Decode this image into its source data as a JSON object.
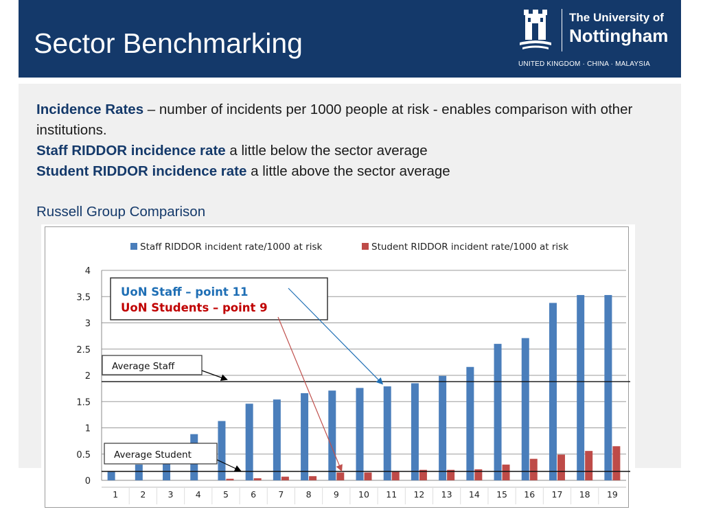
{
  "header": {
    "title": "Sector Benchmarking",
    "logo": {
      "line1": "The University of",
      "line2": "Nottingham",
      "line3": "UNITED KINGDOM · CHINA · MALAYSIA"
    }
  },
  "body": {
    "line1_bold": "Incidence Rates",
    "line1_rest": " – number of incidents per 1000 people at risk - enables comparison with other institutions.",
    "line2_bold": "Staff RIDDOR incidence rate",
    "line2_rest": " a little below the sector average",
    "line3_bold": "Student RIDDOR incidence rate",
    "line3_rest": " a little above the sector average",
    "subheading": "Russell Group Comparison"
  },
  "colors": {
    "header_bg": "#14396a",
    "staff_series": "#4a7ebb",
    "student_series": "#be4b48",
    "annotation_staff_text": "#1f6fb5",
    "annotation_student_text": "#c00000"
  },
  "chart_data": {
    "type": "bar",
    "categories": [
      "1",
      "2",
      "3",
      "4",
      "5",
      "6",
      "7",
      "8",
      "9",
      "10",
      "11",
      "12",
      "13",
      "14",
      "15",
      "16",
      "17",
      "18",
      "19"
    ],
    "series": [
      {
        "name": "Staff RIDDOR incident rate/1000 at risk",
        "values": [
          0.17,
          0.3,
          0.33,
          0.88,
          1.13,
          1.46,
          1.54,
          1.66,
          1.71,
          1.76,
          1.79,
          1.85,
          1.99,
          2.16,
          2.6,
          2.71,
          3.38,
          3.53,
          3.53
        ]
      },
      {
        "name": "Student RIDDOR incident rate/1000 at risk",
        "values": [
          0.0,
          0.0,
          0.0,
          0.0,
          0.03,
          0.04,
          0.07,
          0.08,
          0.15,
          0.15,
          0.17,
          0.2,
          0.2,
          0.21,
          0.3,
          0.41,
          0.49,
          0.56,
          0.65
        ]
      }
    ],
    "ylim": [
      0,
      4
    ],
    "yticks": [
      "0",
      "0.5",
      "1",
      "1.5",
      "2",
      "2.5",
      "3",
      "3.5",
      "4"
    ],
    "grid": true,
    "legend_position": "top",
    "reference_lines": [
      {
        "label": "Average Staff",
        "value": 1.88
      },
      {
        "label": "Average Student",
        "value": 0.17
      }
    ],
    "annotation": {
      "staff_text": "UoN Staff – point 11",
      "student_text": "UoN Students – point 9",
      "staff_point": 11,
      "student_point": 9
    }
  }
}
